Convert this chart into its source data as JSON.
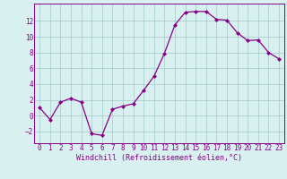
{
  "x": [
    0,
    1,
    2,
    3,
    4,
    5,
    6,
    7,
    8,
    9,
    10,
    11,
    12,
    13,
    14,
    15,
    16,
    17,
    18,
    19,
    20,
    21,
    22,
    23
  ],
  "y": [
    1.0,
    -0.5,
    1.7,
    2.2,
    1.7,
    -2.3,
    -2.5,
    0.8,
    1.2,
    1.5,
    3.2,
    5.0,
    7.9,
    11.5,
    13.1,
    13.2,
    13.2,
    12.2,
    12.1,
    10.5,
    9.5,
    9.6,
    8.0,
    7.2
  ],
  "line_color": "#880088",
  "marker": "D",
  "marker_size": 2.0,
  "bg_color": "#d8f0f0",
  "grid_color": "#aad0d0",
  "xlabel": "Windchill (Refroidissement éolien,°C)",
  "xlim": [
    -0.5,
    23.5
  ],
  "ylim": [
    -3.5,
    14.2
  ],
  "yticks": [
    -2,
    0,
    2,
    4,
    6,
    8,
    10,
    12
  ],
  "xticks": [
    0,
    1,
    2,
    3,
    4,
    5,
    6,
    7,
    8,
    9,
    10,
    11,
    12,
    13,
    14,
    15,
    16,
    17,
    18,
    19,
    20,
    21,
    22,
    23
  ],
  "tick_fontsize": 5.5,
  "xlabel_fontsize": 6.0
}
